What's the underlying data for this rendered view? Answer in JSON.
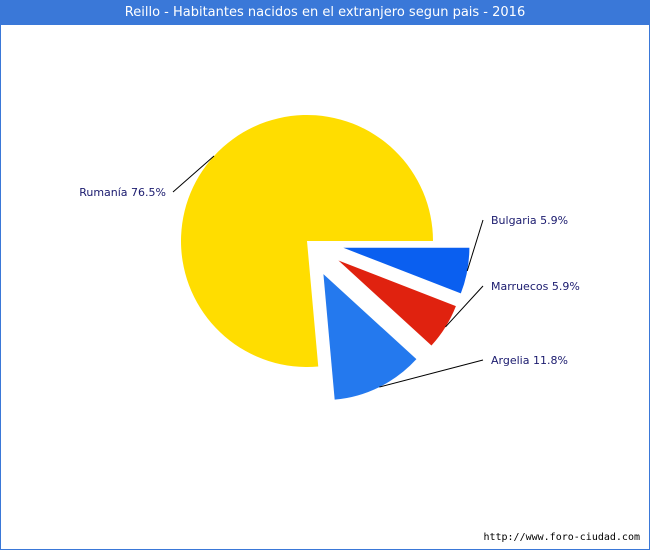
{
  "chart_data": {
    "type": "pie",
    "title": "Reillo - Habitantes nacidos en el extranjero segun pais - 2016",
    "slices": [
      {
        "name": "Bulgaria",
        "value": 5.9,
        "label": "Bulgaria 5.9%",
        "color": "#0a5ff0",
        "exploded": true
      },
      {
        "name": "Marruecos",
        "value": 5.9,
        "label": "Marruecos 5.9%",
        "color": "#e0220f",
        "exploded": true
      },
      {
        "name": "Argelia",
        "value": 11.8,
        "label": "Argelia 11.8%",
        "color": "#2479ee",
        "exploded": true
      },
      {
        "name": "Rumanía",
        "value": 76.5,
        "label": "Rumanía 76.5%",
        "color": "#ffdd00",
        "exploded": false
      }
    ]
  },
  "source": "http://www.foro-ciudad.com"
}
